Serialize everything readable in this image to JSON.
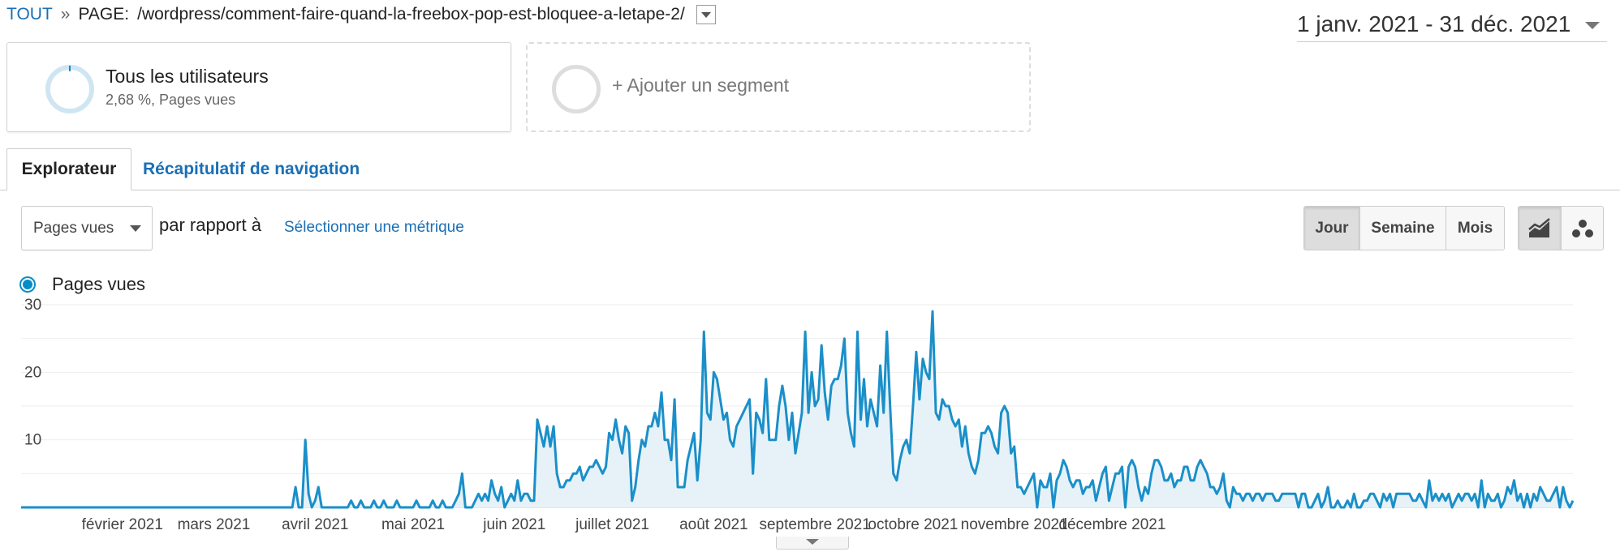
{
  "breadcrumb": {
    "root": "TOUT",
    "separator": "»",
    "page_prefix": "PAGE:",
    "page_path": "/wordpress/comment-faire-quand-la-freebox-pop-est-bloquee-a-letape-2/"
  },
  "date_range": "1 janv. 2021 - 31 déc. 2021",
  "segments": {
    "active": {
      "title": "Tous les utilisateurs",
      "subtitle": "2,68 %, Pages vues"
    },
    "add": "+ Ajouter un segment"
  },
  "tabs": [
    {
      "label": "Explorateur",
      "active": true
    },
    {
      "label": "Récapitulatif de navigation",
      "active": false
    }
  ],
  "controls": {
    "metric": "Pages vues",
    "compare_text": "par rapport à",
    "select_metric": "Sélectionner une métrique",
    "granularity": [
      "Jour",
      "Semaine",
      "Mois"
    ],
    "granularity_selected": "Jour",
    "view_icons": [
      "line-chart-icon",
      "motion-chart-icon"
    ]
  },
  "legend": {
    "label": "Pages vues",
    "color": "#058dc7"
  },
  "chart_data": {
    "type": "line",
    "series_name": "Pages vues",
    "yticks": [
      10,
      20,
      30
    ],
    "ylim": [
      0,
      30
    ],
    "grid": true,
    "fill_color": "#e6f2f8",
    "line_color": "#1a8fc9",
    "x_labels": [
      "février 2021",
      "mars 2021",
      "avril 2021",
      "mai 2021",
      "juin 2021",
      "juillet 2021",
      "août 2021",
      "septembre 2021",
      "octobre 2021",
      "novembre 2021",
      "décembre 2021"
    ],
    "start": "2021-01-01",
    "values": [
      0,
      0,
      0,
      0,
      0,
      0,
      0,
      0,
      0,
      0,
      0,
      0,
      0,
      0,
      0,
      0,
      0,
      0,
      0,
      0,
      0,
      0,
      0,
      0,
      0,
      0,
      0,
      0,
      0,
      0,
      0,
      0,
      0,
      0,
      0,
      0,
      0,
      0,
      0,
      0,
      0,
      0,
      0,
      0,
      0,
      0,
      0,
      0,
      0,
      0,
      0,
      0,
      0,
      0,
      0,
      0,
      0,
      0,
      0,
      0,
      0,
      0,
      0,
      0,
      0,
      0,
      0,
      0,
      0,
      0,
      0,
      0,
      0,
      0,
      0,
      0,
      0,
      0,
      0,
      0,
      0,
      0,
      0,
      0,
      3,
      0,
      0,
      10,
      2,
      0,
      1,
      3,
      0,
      0,
      0,
      0,
      0,
      0,
      0,
      0,
      0,
      1,
      0,
      0,
      1,
      0,
      0,
      0,
      1,
      0,
      0,
      1,
      0,
      0,
      0,
      1,
      0,
      0,
      0,
      0,
      0,
      1,
      0,
      0,
      0,
      0,
      1,
      0,
      0,
      1,
      0,
      0,
      0,
      1,
      2,
      5,
      0,
      0,
      0,
      1,
      2,
      1,
      2,
      1,
      4,
      2,
      1,
      3,
      0,
      1,
      2,
      1,
      4,
      1,
      2,
      2,
      1,
      1,
      13,
      11,
      9,
      12,
      9,
      12,
      5,
      3,
      3,
      4,
      4,
      5,
      5,
      6,
      4,
      5,
      6,
      6,
      7,
      6,
      5,
      6,
      11,
      10,
      13,
      10,
      8,
      12,
      11,
      1,
      3,
      7,
      10,
      9,
      12,
      12,
      14,
      12,
      17,
      10,
      10,
      7,
      16,
      3,
      3,
      3,
      7,
      9,
      11,
      4,
      10,
      26,
      14,
      13,
      20,
      19,
      16,
      13,
      14,
      10,
      9,
      12,
      13,
      14,
      15,
      16,
      5,
      14,
      13,
      11,
      19,
      10,
      10,
      10,
      15,
      18,
      15,
      10,
      14,
      8,
      11,
      14,
      26,
      14,
      20,
      15,
      16,
      24,
      17,
      13,
      18,
      19,
      19,
      21,
      25,
      14,
      11,
      9,
      26,
      13,
      19,
      12,
      16,
      14,
      12,
      21,
      14,
      26,
      15,
      5,
      4,
      7,
      9,
      10,
      8,
      15,
      23,
      16,
      22,
      20,
      19,
      29,
      14,
      13,
      16,
      15,
      15,
      13,
      12,
      13,
      9,
      12,
      8,
      6,
      5,
      7,
      11,
      11,
      12,
      11,
      9,
      8,
      14,
      15,
      14,
      8,
      9,
      3,
      3,
      2,
      3,
      4,
      5,
      0,
      4,
      3,
      3,
      5,
      0,
      4,
      5,
      7,
      6,
      4,
      3,
      4,
      4,
      2,
      3,
      3,
      4,
      1,
      3,
      5,
      6,
      1,
      3,
      5,
      5,
      6,
      0,
      6,
      7,
      6,
      3,
      1,
      3,
      2,
      5,
      7,
      7,
      6,
      4,
      4,
      5,
      3,
      4,
      4,
      6,
      6,
      4,
      4,
      6,
      7,
      6,
      5,
      3,
      3,
      2,
      3,
      5,
      1,
      0,
      3,
      2,
      2,
      1,
      2,
      2,
      1,
      2,
      2,
      1,
      2,
      2,
      2,
      1,
      1,
      2,
      2,
      2,
      2,
      2,
      0,
      2,
      2,
      0,
      0,
      1,
      2,
      0,
      1,
      3,
      0,
      0,
      1,
      0,
      0,
      1,
      0,
      2,
      0,
      0,
      1,
      1,
      2,
      2,
      1,
      0,
      2,
      1,
      2,
      0,
      2,
      2,
      2,
      2,
      2,
      1,
      1,
      2,
      1,
      0,
      4,
      1,
      2,
      1,
      2,
      1,
      2,
      0,
      1,
      2,
      1,
      2,
      2,
      1,
      2,
      0,
      4,
      0,
      2,
      1,
      1,
      2,
      0,
      1,
      3,
      2,
      4,
      1,
      2,
      0,
      2,
      0,
      2,
      1,
      3,
      2,
      1,
      1,
      2,
      3,
      0,
      3,
      1,
      0,
      1
    ]
  }
}
